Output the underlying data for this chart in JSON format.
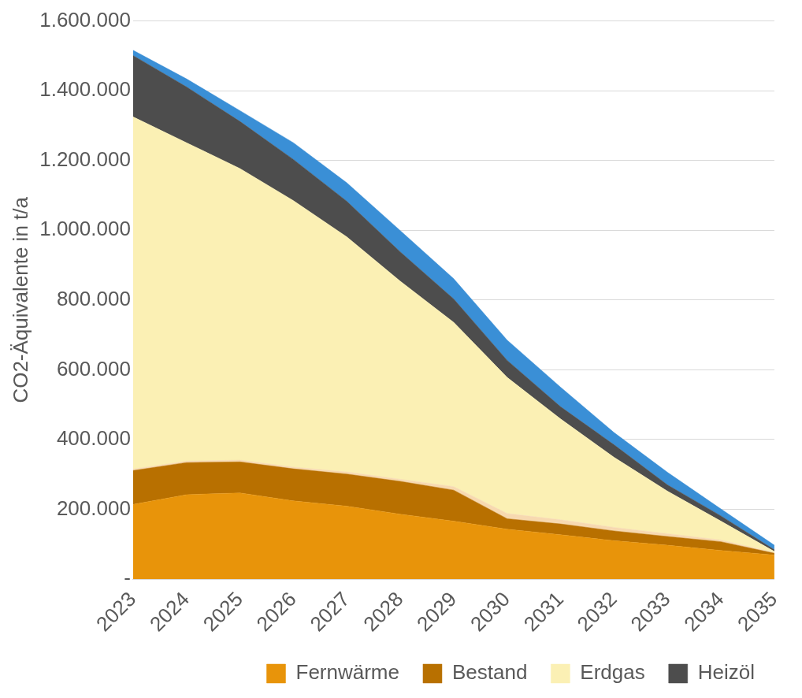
{
  "chart_data": {
    "type": "area",
    "stacked": true,
    "ylabel": "CO2-Äquivalente in t/a",
    "categories": [
      "2023",
      "2024",
      "2025",
      "2026",
      "2027",
      "2028",
      "2029",
      "2030",
      "2031",
      "2032",
      "2033",
      "2034",
      "2035"
    ],
    "series": [
      {
        "name": "Fernwärme",
        "color": "#e8940a",
        "values": [
          214000,
          242000,
          247000,
          224000,
          209000,
          186000,
          166000,
          143000,
          127000,
          110000,
          97000,
          82000,
          69000
        ]
      },
      {
        "name": "Bestand",
        "color": "#b87000",
        "values": [
          97000,
          92000,
          89000,
          92000,
          92000,
          94000,
          89000,
          30000,
          31000,
          28000,
          25000,
          25000,
          5000
        ]
      },
      {
        "color": "#f7d9b0",
        "values": [
          4000,
          4000,
          5000,
          5000,
          6000,
          6000,
          10000,
          15000,
          12000,
          10000,
          8000,
          5000,
          2000
        ]
      },
      {
        "name": "Erdgas",
        "color": "#fbf0b4",
        "values": [
          1010000,
          913000,
          836000,
          764000,
          674000,
          568000,
          471000,
          390000,
          289000,
          201000,
          122000,
          54000,
          3000
        ]
      },
      {
        "name": "Heizöl",
        "color": "#4d4d4d",
        "values": [
          176000,
          160000,
          135000,
          118000,
          102000,
          84000,
          67000,
          49000,
          35000,
          36000,
          18000,
          15000,
          5000
        ]
      },
      {
        "color": "#3a8fd6",
        "values": [
          15000,
          23000,
          31000,
          48000,
          53000,
          61000,
          58000,
          58000,
          56000,
          35000,
          36000,
          20000,
          13000
        ]
      }
    ],
    "ylim": [
      0,
      1600000
    ],
    "yticks": [
      {
        "value": 0,
        "label": "-"
      },
      {
        "value": 200000,
        "label": "200.000"
      },
      {
        "value": 400000,
        "label": "400.000"
      },
      {
        "value": 600000,
        "label": "600.000"
      },
      {
        "value": 800000,
        "label": "800.000"
      },
      {
        "value": 1000000,
        "label": "1.000.000"
      },
      {
        "value": 1200000,
        "label": "1.200.000"
      },
      {
        "value": 1400000,
        "label": "1.400.000"
      },
      {
        "value": 1600000,
        "label": "1.600.000"
      }
    ],
    "grid": "y",
    "legend": "bottom"
  }
}
